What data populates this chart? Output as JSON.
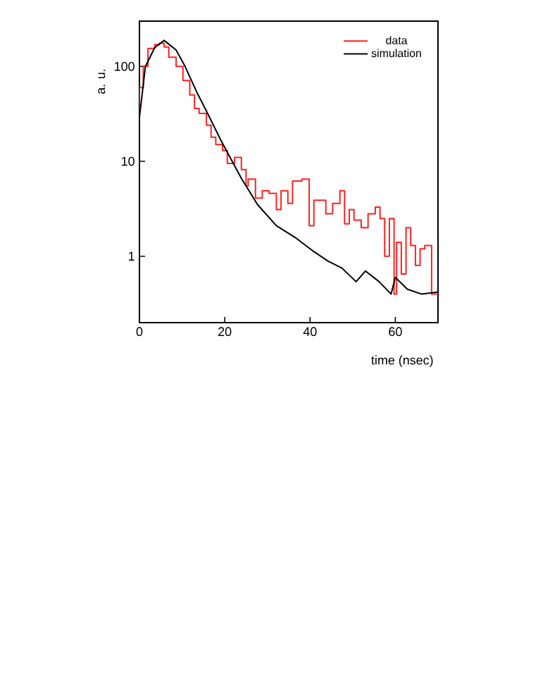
{
  "chart_data": {
    "type": "line",
    "xlabel": "time (nsec)",
    "ylabel": "a. u.",
    "log": "y",
    "xlim": [
      0,
      70
    ],
    "ylim": [
      0.2,
      300
    ],
    "xticks": [
      0,
      20,
      40,
      60
    ],
    "yticks": [
      1,
      10,
      100
    ],
    "legend": "top right",
    "grid": false,
    "marker": "none",
    "line_style": "solid",
    "series": [
      {
        "name": "data",
        "type": "step",
        "color": "#ff2020",
        "x": [
          0,
          0.9,
          2,
          3.6,
          4.7,
          5.8,
          6.9,
          8.6,
          10.2,
          11.8,
          12.9,
          14,
          15.7,
          16.8,
          17.9,
          19.5,
          20.6,
          22.3,
          23.9,
          25,
          25.5,
          27.2,
          28.8,
          30.4,
          32.1,
          33.2,
          34.8,
          35.9,
          38.1,
          39.8,
          40.9,
          42,
          43.7,
          45.3,
          47,
          48.1,
          49.2,
          50.3,
          52,
          53.6,
          55.3,
          56.4,
          57.5,
          58.6,
          59.7,
          60.3,
          61.4,
          62.5,
          63.6,
          64.7,
          65.8,
          66.9,
          68.5,
          69.7,
          70
        ],
        "values": [
          29,
          60,
          100,
          155,
          170,
          175,
          160,
          125,
          100,
          71,
          50,
          36,
          32,
          24,
          18,
          15,
          13,
          9.5,
          11,
          8.2,
          5.5,
          6.5,
          4.1,
          4.9,
          4.6,
          3.1,
          4.9,
          3.6,
          6.2,
          6.5,
          2.1,
          3.9,
          3.9,
          2.8,
          3.6,
          4.9,
          2.2,
          3.1,
          2.4,
          2.0,
          2.8,
          3.3,
          2.5,
          1.0,
          2.5,
          0.4,
          1.4,
          0.65,
          2.0,
          1.3,
          0.8,
          1.2,
          1.3,
          0.4,
          0.4
        ]
      },
      {
        "name": "simulation",
        "color": "#000000",
        "x": [
          0,
          1.4,
          3.6,
          5.8,
          8.6,
          10.7,
          13.5,
          15.7,
          19,
          22.3,
          24,
          27.7,
          32.1,
          36.5,
          40.9,
          44.2,
          47.5,
          50.8,
          53,
          56.2,
          59,
          60,
          62.8,
          66.1,
          70
        ],
        "values": [
          29,
          100,
          158,
          188,
          149,
          100,
          53,
          34,
          17,
          9,
          6.5,
          3.5,
          2.1,
          1.58,
          1.12,
          0.89,
          0.75,
          0.54,
          0.7,
          0.54,
          0.4,
          0.6,
          0.45,
          0.4,
          0.42
        ]
      }
    ]
  }
}
